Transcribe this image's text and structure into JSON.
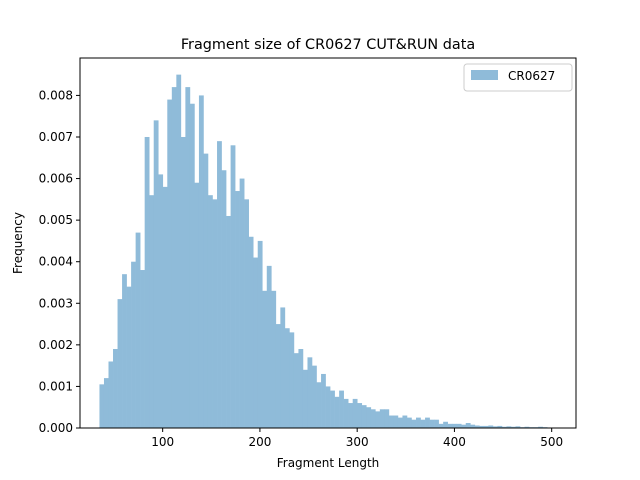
{
  "chart_data": {
    "type": "bar",
    "title": "Fragment size of CR0627 CUT&RUN data",
    "xlabel": "Fragment Length",
    "ylabel": "Frequency",
    "xlim": [
      15,
      525
    ],
    "ylim": [
      0,
      0.0089
    ],
    "xticks": [
      100,
      200,
      300,
      400,
      500
    ],
    "xtick_labels": [
      "100",
      "200",
      "300",
      "400",
      "500"
    ],
    "yticks": [
      0,
      0.001,
      0.002,
      0.003,
      0.004,
      0.005,
      0.006,
      0.007,
      0.008
    ],
    "ytick_labels": [
      "0.000",
      "0.001",
      "0.002",
      "0.003",
      "0.004",
      "0.005",
      "0.006",
      "0.007",
      "0.008"
    ],
    "legend": {
      "position": "top-right",
      "entries": [
        "CR0627"
      ]
    },
    "grid": false,
    "bar_color": "#8fbbd9",
    "bin_width": 4.65,
    "bin_start": 35,
    "series": [
      {
        "name": "CR0627",
        "values": [
          0.00105,
          0.0012,
          0.0016,
          0.0019,
          0.0031,
          0.0037,
          0.0034,
          0.004,
          0.0047,
          0.0038,
          0.007,
          0.0056,
          0.0074,
          0.0061,
          0.0058,
          0.0079,
          0.0082,
          0.0085,
          0.007,
          0.0082,
          0.0078,
          0.0059,
          0.008,
          0.0066,
          0.0056,
          0.0055,
          0.0069,
          0.0062,
          0.0051,
          0.0068,
          0.0057,
          0.006,
          0.0055,
          0.0046,
          0.0041,
          0.0045,
          0.0033,
          0.0039,
          0.0033,
          0.0025,
          0.0029,
          0.0024,
          0.0023,
          0.0018,
          0.0019,
          0.0014,
          0.0017,
          0.0015,
          0.0011,
          0.0013,
          0.001,
          0.0009,
          0.00075,
          0.0009,
          0.0007,
          0.0006,
          0.0007,
          0.0006,
          0.00055,
          0.0005,
          0.00045,
          0.0004,
          0.00045,
          0.00045,
          0.0003,
          0.0003,
          0.00025,
          0.0003,
          0.00025,
          0.0002,
          0.00025,
          0.0002,
          0.00025,
          0.0002,
          0.0002,
          0.0001,
          0.00015,
          0.0001,
          0.0001,
          0.0001,
          8e-05,
          0.00012,
          8e-05,
          6e-05,
          5e-05,
          5e-05,
          6e-05,
          4e-05,
          5e-05,
          3e-05,
          4e-05,
          3e-05,
          4e-05,
          2e-05,
          3e-05,
          2e-05,
          2e-05,
          3e-05,
          2e-05,
          1e-05
        ]
      }
    ]
  }
}
